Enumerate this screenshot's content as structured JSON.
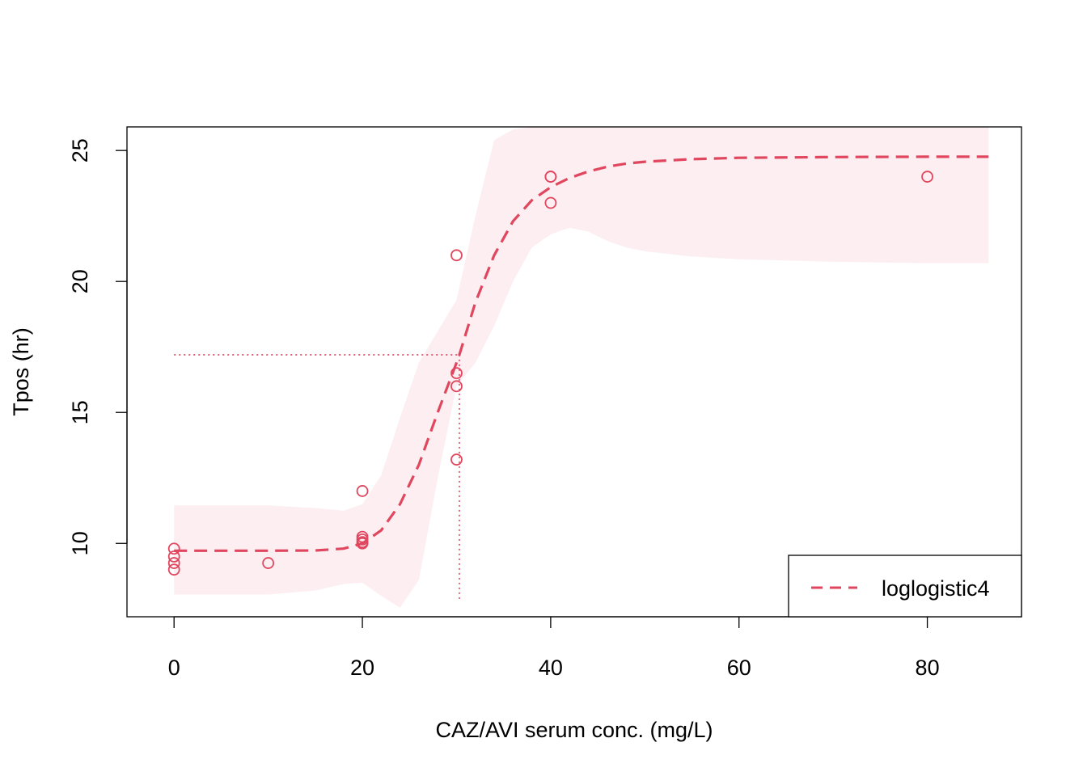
{
  "chart_data": {
    "type": "scatter",
    "title": "",
    "xlabel": "CAZ/AVI serum conc. (mg/L)",
    "ylabel": "Tpos (hr)",
    "xlim": [
      -5,
      90
    ],
    "ylim": [
      7.2,
      25.9
    ],
    "x_ticks": [
      0,
      20,
      40,
      60,
      80
    ],
    "y_ticks": [
      10,
      15,
      20,
      25
    ],
    "x_tick_labels": [
      "0",
      "20",
      "40",
      "60",
      "80"
    ],
    "y_tick_labels": [
      "10",
      "15",
      "20",
      "25"
    ],
    "grid": false,
    "color": "#E0475F",
    "band_color": "#FCEEF1",
    "legend": {
      "position": "bottom-right",
      "entries": [
        "loglogistic4"
      ]
    },
    "points": [
      {
        "x": 0,
        "y": 9.8
      },
      {
        "x": 0,
        "y": 9.5
      },
      {
        "x": 0,
        "y": 9.25
      },
      {
        "x": 0,
        "y": 9.0
      },
      {
        "x": 10,
        "y": 9.25
      },
      {
        "x": 20,
        "y": 12.0
      },
      {
        "x": 20,
        "y": 10.25
      },
      {
        "x": 20,
        "y": 10.15
      },
      {
        "x": 20,
        "y": 10.05
      },
      {
        "x": 20,
        "y": 10.0
      },
      {
        "x": 30,
        "y": 21.0
      },
      {
        "x": 30,
        "y": 16.5
      },
      {
        "x": 30,
        "y": 16.0
      },
      {
        "x": 30,
        "y": 13.2
      },
      {
        "x": 40,
        "y": 24.0
      },
      {
        "x": 40,
        "y": 24.0
      },
      {
        "x": 40,
        "y": 23.0
      },
      {
        "x": 80,
        "y": 24.0
      }
    ],
    "series": [
      {
        "name": "loglogistic4",
        "style": "dashed",
        "x": [
          0,
          5,
          10,
          15,
          18,
          20,
          22,
          24,
          26,
          28,
          30,
          30.3,
          32,
          34,
          36,
          38,
          40,
          42,
          44,
          46,
          48,
          50,
          55,
          60,
          70,
          80,
          86.5
        ],
        "y": [
          9.72,
          9.72,
          9.72,
          9.73,
          9.8,
          10.0,
          10.5,
          11.5,
          13.0,
          15.0,
          16.9,
          17.2,
          19.2,
          21.0,
          22.3,
          23.1,
          23.6,
          23.95,
          24.2,
          24.38,
          24.5,
          24.57,
          24.67,
          24.72,
          24.75,
          24.76,
          24.76
        ]
      }
    ],
    "confidence_band": {
      "x": [
        0,
        5,
        10,
        15,
        18,
        20,
        22,
        24,
        26,
        28,
        30,
        32,
        34,
        36,
        38,
        40,
        42,
        44,
        46,
        48,
        50,
        55,
        60,
        70,
        80,
        86.5
      ],
      "upper": [
        11.45,
        11.45,
        11.45,
        11.35,
        11.25,
        11.5,
        12.6,
        14.8,
        16.9,
        18.1,
        19.3,
        22.5,
        25.4,
        25.8,
        25.9,
        25.9,
        25.9,
        25.9,
        25.9,
        25.9,
        25.9,
        25.9,
        25.9,
        25.9,
        25.9,
        25.9
      ],
      "lower": [
        8.05,
        8.05,
        8.05,
        8.2,
        8.45,
        8.5,
        8.0,
        7.55,
        8.6,
        12.5,
        16.0,
        16.9,
        18.3,
        20.0,
        21.3,
        21.8,
        22.05,
        21.9,
        21.55,
        21.3,
        21.15,
        20.95,
        20.85,
        20.75,
        20.7,
        20.7
      ]
    },
    "reference_lines": {
      "x": 30.3,
      "y": 17.2
    }
  }
}
